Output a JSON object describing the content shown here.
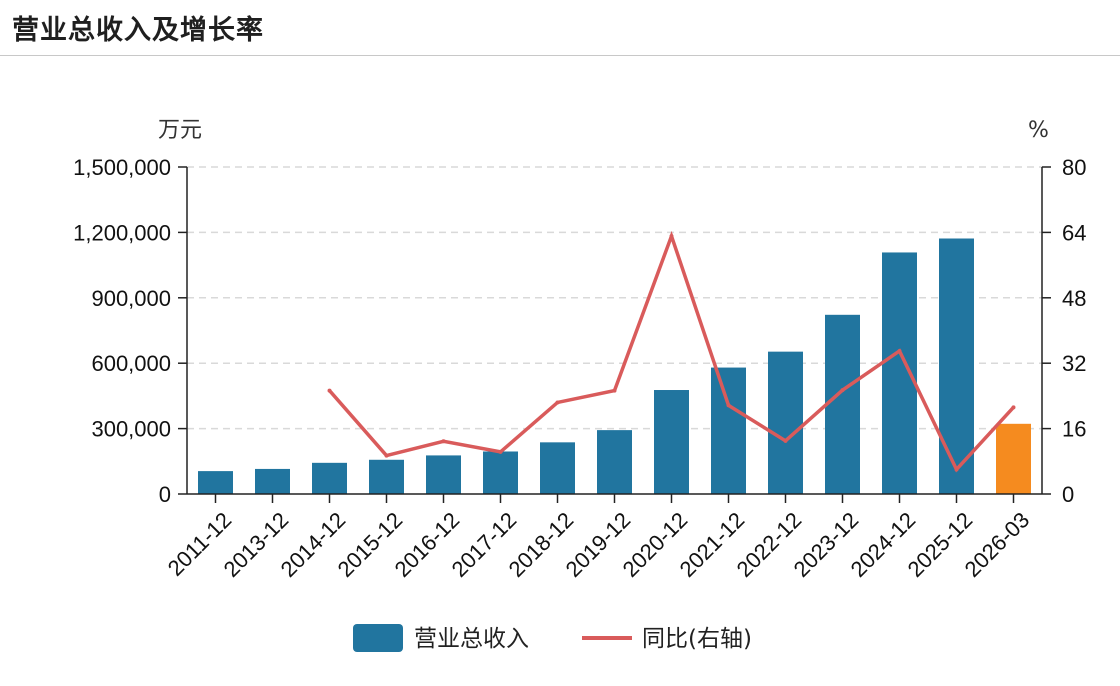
{
  "page": {
    "title": "营业总收入及增长率"
  },
  "chart_data": {
    "type": "bar",
    "categories": [
      "2011-12",
      "2013-12",
      "2014-12",
      "2015-12",
      "2016-12",
      "2017-12",
      "2018-12",
      "2019-12",
      "2020-12",
      "2021-12",
      "2022-12",
      "2023-12",
      "2024-12",
      "2025-12",
      "2026-03"
    ],
    "series": [
      {
        "name": "营业总收入",
        "type": "bar",
        "axis": "left",
        "values": [
          105000,
          115000,
          143000,
          157000,
          177000,
          195000,
          237000,
          293000,
          477000,
          580000,
          653000,
          822000,
          1108000,
          1172000,
          322000
        ]
      },
      {
        "name": "同比(右轴)",
        "type": "line",
        "axis": "right",
        "values": [
          null,
          null,
          25.3,
          9.4,
          12.9,
          10.3,
          22.4,
          25.3,
          63.1,
          21.7,
          13.0,
          25.4,
          35.0,
          6.0,
          21.2
        ]
      }
    ],
    "left_axis": {
      "unit": "万元",
      "ylim": [
        0,
        1500000
      ],
      "ticks": [
        "0",
        "300,000",
        "600,000",
        "900,000",
        "1,200,000",
        "1,500,000"
      ]
    },
    "right_axis": {
      "unit": "%",
      "ylim": [
        0,
        80
      ],
      "ticks": [
        "0",
        "16",
        "32",
        "48",
        "64",
        "80"
      ]
    },
    "highlight_last_bar": true,
    "grid": true,
    "legend_placement": "bottom-center",
    "colors": {
      "bar": "#21759f",
      "bar_highlight": "#f58b1f",
      "line": "#d95b5b",
      "grid": "#d9d9d9",
      "axis": "#222222"
    }
  }
}
